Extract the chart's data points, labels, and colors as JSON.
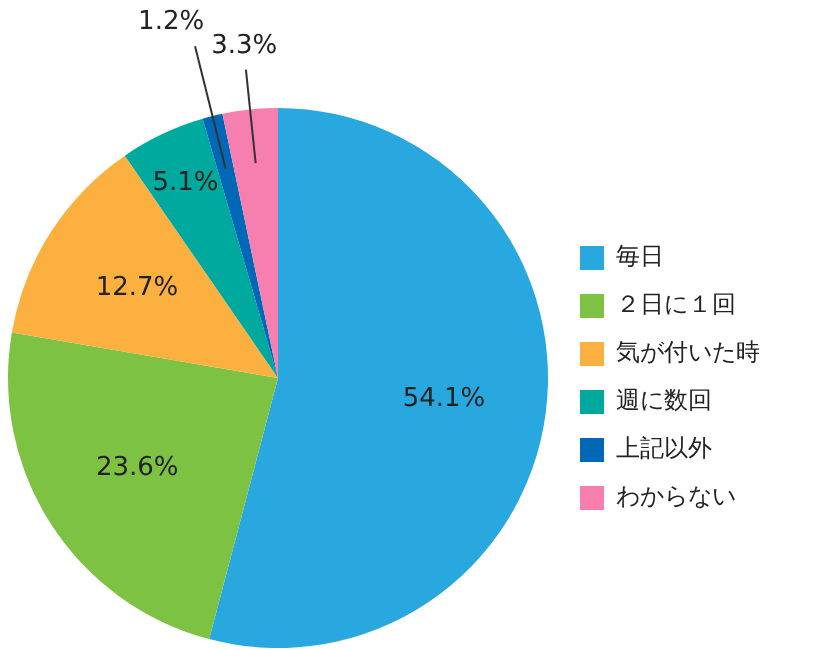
{
  "chart_data": {
    "type": "pie",
    "categories": [
      "毎日",
      "２日に１回",
      "気が付いた時",
      "週に数回",
      "上記以外",
      "わからない"
    ],
    "values": [
      54.1,
      23.6,
      12.7,
      5.1,
      1.2,
      3.3
    ],
    "colors": [
      "#29a8e0",
      "#7dc242",
      "#fbb040",
      "#00a99d",
      "#0068b7",
      "#f77fb0"
    ],
    "value_labels": [
      "54.1%",
      "23.6%",
      "12.7%",
      "5.1%",
      "1.2%",
      "3.3%"
    ],
    "legend": "right"
  }
}
